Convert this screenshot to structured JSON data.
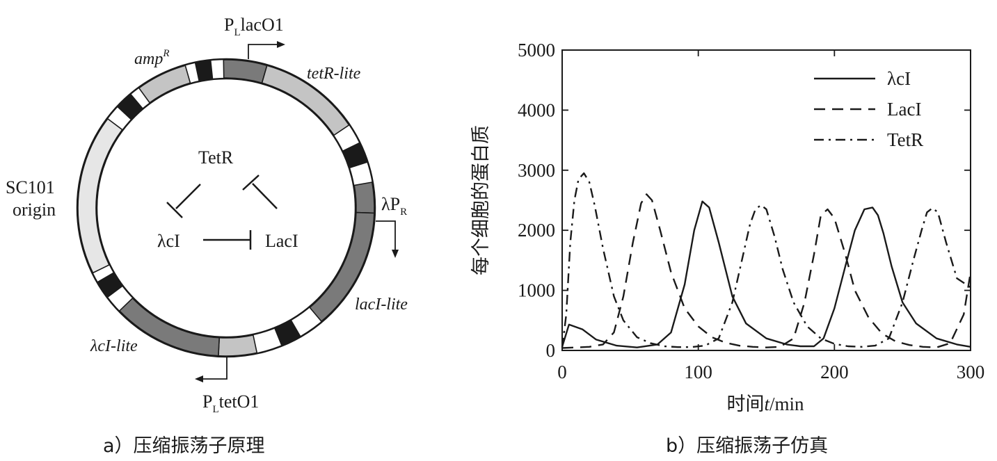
{
  "plasmid": {
    "labels": {
      "placO1": "P",
      "placO1_sub": "L",
      "placO1_rest": "lacO1",
      "tetR_lite": "tetR-lite",
      "ampR": "amp",
      "ampR_sup": "R",
      "sc101_line1": "SC101",
      "sc101_line2": "origin",
      "lambdaPR": "λP",
      "lambdaPR_sub": "R",
      "lacI_lite": "lacI-lite",
      "lambda_cI_lite": "λcI-lite",
      "ptetO1": "P",
      "ptetO1_sub": "L",
      "ptetO1_rest": "tetO1"
    },
    "network": {
      "tetR": "TetR",
      "lambda_cI": "λcI",
      "lacI": "LacI"
    },
    "colors": {
      "dark_gene": "#7a7a7a",
      "light_gene": "#c4c4c4",
      "origin": "#e6e6e6",
      "terminator": "#1a1a1a"
    }
  },
  "chart_data": {
    "type": "line",
    "xlabel": "时间",
    "xlabel_var": "t",
    "xlabel_unit": "/min",
    "ylabel": "每个细胞的蛋白质",
    "xlim": [
      0,
      300
    ],
    "ylim": [
      0,
      5000
    ],
    "xticks": [
      0,
      100,
      200,
      300
    ],
    "yticks": [
      0,
      1000,
      2000,
      3000,
      4000,
      5000
    ],
    "legend_position": "top-right",
    "series": [
      {
        "name": "λcI",
        "style": "solid",
        "x": [
          0,
          5,
          15,
          25,
          40,
          55,
          70,
          80,
          90,
          97,
          103,
          108,
          115,
          125,
          135,
          150,
          165,
          175,
          185,
          192,
          200,
          208,
          215,
          222,
          228,
          232,
          236,
          242,
          250,
          260,
          275,
          290,
          300
        ],
        "y": [
          60,
          430,
          350,
          180,
          80,
          50,
          100,
          300,
          1100,
          2000,
          2480,
          2380,
          1800,
          900,
          450,
          200,
          100,
          70,
          70,
          200,
          700,
          1400,
          2000,
          2350,
          2380,
          2250,
          1950,
          1400,
          800,
          450,
          200,
          100,
          60
        ]
      },
      {
        "name": "LacI",
        "style": "dashed",
        "x": [
          0,
          10,
          20,
          30,
          38,
          45,
          52,
          58,
          62,
          66,
          72,
          80,
          90,
          100,
          110,
          120,
          130,
          140,
          150,
          160,
          170,
          178,
          185,
          190,
          195,
          200,
          208,
          215,
          225,
          235,
          245,
          255,
          265,
          275,
          285,
          295,
          300
        ],
        "y": [
          40,
          50,
          60,
          100,
          300,
          900,
          1800,
          2450,
          2600,
          2500,
          2000,
          1300,
          700,
          400,
          220,
          130,
          80,
          60,
          50,
          60,
          200,
          800,
          1600,
          2250,
          2350,
          2200,
          1600,
          1000,
          550,
          280,
          150,
          90,
          60,
          50,
          120,
          600,
          1300
        ]
      },
      {
        "name": "TetR",
        "style": "dashdot",
        "x": [
          0,
          3,
          6,
          9,
          12,
          16,
          20,
          24,
          30,
          38,
          45,
          55,
          65,
          75,
          85,
          95,
          105,
          115,
          125,
          132,
          138,
          142,
          146,
          150,
          156,
          162,
          170,
          180,
          190,
          200,
          210,
          220,
          230,
          240,
          250,
          258,
          264,
          268,
          272,
          276,
          282,
          290,
          300
        ],
        "y": [
          50,
          600,
          1800,
          2500,
          2850,
          2950,
          2800,
          2400,
          1700,
          900,
          500,
          220,
          120,
          70,
          55,
          55,
          80,
          200,
          800,
          1500,
          2100,
          2350,
          2420,
          2350,
          1900,
          1350,
          800,
          400,
          200,
          110,
          70,
          60,
          80,
          200,
          800,
          1500,
          2000,
          2300,
          2370,
          2300,
          1800,
          1200,
          1050
        ]
      }
    ]
  },
  "captions": {
    "a": "a）压缩振荡子原理",
    "b": "b）压缩振荡子仿真"
  }
}
